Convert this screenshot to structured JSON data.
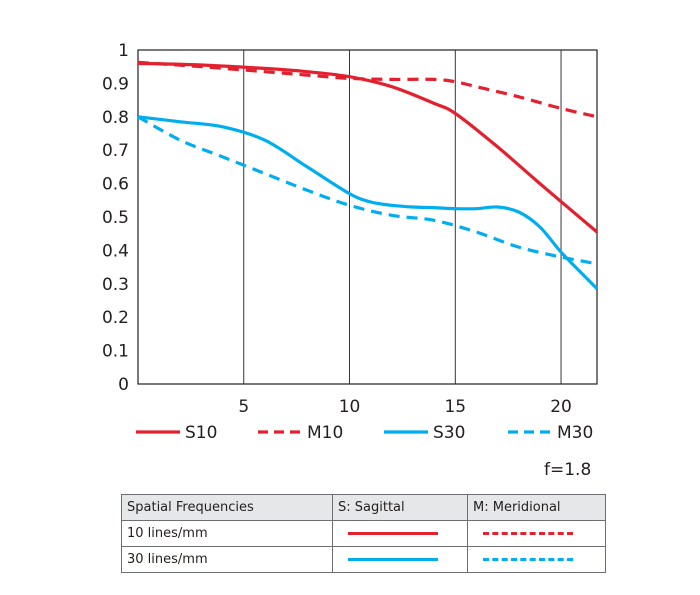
{
  "chart_data": {
    "type": "line",
    "xlim": [
      0,
      21.7
    ],
    "ylim": [
      0,
      1
    ],
    "x_ticks": [
      5,
      10,
      15,
      20
    ],
    "y_ticks": [
      0,
      0.1,
      0.2,
      0.3,
      0.4,
      0.5,
      0.6,
      0.7,
      0.8,
      0.9,
      1
    ],
    "y_tick_labels": [
      "0",
      "0.1",
      "0.2",
      "0.3",
      "0.4",
      "0.5",
      "0.6",
      "0.7",
      "0.8",
      "0.9",
      "1"
    ],
    "grid": "vertical",
    "legend_position": "bottom",
    "series": [
      {
        "name": "S10",
        "color": "#e4202e",
        "style": "solid",
        "x": [
          0,
          3,
          6,
          8,
          10,
          12,
          14,
          15,
          17,
          19,
          21.7
        ],
        "y": [
          0.96,
          0.955,
          0.945,
          0.935,
          0.92,
          0.89,
          0.84,
          0.81,
          0.71,
          0.6,
          0.455
        ]
      },
      {
        "name": "M10",
        "color": "#e4202e",
        "style": "dashed",
        "x": [
          0,
          3,
          6,
          8,
          10,
          12,
          14,
          15,
          16,
          18,
          20,
          21.7
        ],
        "y": [
          0.963,
          0.95,
          0.935,
          0.925,
          0.915,
          0.912,
          0.912,
          0.905,
          0.89,
          0.86,
          0.825,
          0.8
        ]
      },
      {
        "name": "S30",
        "color": "#00aeef",
        "style": "solid",
        "x": [
          0,
          2,
          4,
          6,
          8,
          10,
          11,
          12,
          13,
          14,
          15,
          16,
          17,
          18,
          19,
          20,
          21,
          21.7
        ],
        "y": [
          0.8,
          0.785,
          0.77,
          0.73,
          0.65,
          0.57,
          0.545,
          0.535,
          0.53,
          0.528,
          0.525,
          0.525,
          0.53,
          0.515,
          0.47,
          0.395,
          0.33,
          0.285
        ]
      },
      {
        "name": "M30",
        "color": "#00aeef",
        "style": "dashed",
        "x": [
          0,
          2,
          4,
          6,
          8,
          10,
          12,
          14,
          16,
          18,
          20,
          21.7
        ],
        "y": [
          0.8,
          0.73,
          0.68,
          0.63,
          0.58,
          0.535,
          0.505,
          0.49,
          0.455,
          0.41,
          0.38,
          0.36
        ]
      }
    ]
  },
  "aperture_label": "f=1.8",
  "table": {
    "headers": [
      "Spatial Frequencies",
      "S: Sagittal",
      "M: Meridional"
    ],
    "rows": [
      {
        "label": "10 lines/mm",
        "color": "#e4202e"
      },
      {
        "label": "30 lines/mm",
        "color": "#00aeef"
      }
    ]
  }
}
